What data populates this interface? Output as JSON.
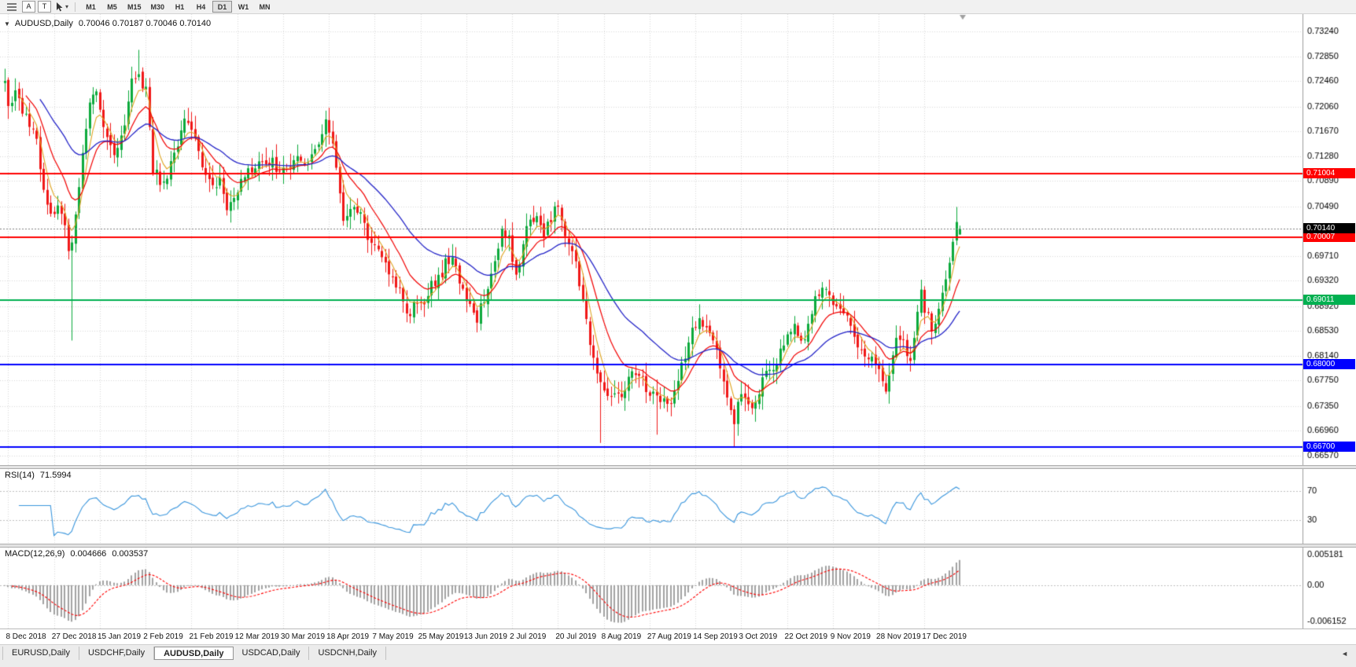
{
  "icons": {
    "window_menu": "▼",
    "cursor_caret": "▾",
    "tab_scroll_left": "◄"
  },
  "toolbar": {
    "buttons": [
      {
        "label": "A"
      },
      {
        "label": "T"
      }
    ],
    "timeframes": [
      "M1",
      "M5",
      "M15",
      "M30",
      "H1",
      "H4",
      "D1",
      "W1",
      "MN"
    ],
    "active_timeframe": "D1"
  },
  "chart": {
    "symbol_title": "AUDUSD,Daily",
    "ohlc_text": "0.70046 0.70187 0.70046 0.70140",
    "current_bar": {
      "o": 0.70046,
      "h": 0.70187,
      "l": 0.70046,
      "c": 0.7014
    },
    "current_price": {
      "value": 0.7014,
      "label": "0.70140",
      "badge_color": "#000000"
    },
    "levels": [
      {
        "value": 0.71004,
        "label": "0.71004",
        "color": "#ff0000"
      },
      {
        "value": 0.70007,
        "label": "0.70007",
        "color": "#ff0000"
      },
      {
        "value": 0.69011,
        "label": "0.69011",
        "color": "#00b050"
      },
      {
        "value": 0.68,
        "label": "0.68000",
        "color": "#0000ff"
      },
      {
        "value": 0.667,
        "label": "0.66700",
        "color": "#0000ff"
      }
    ],
    "colors": {
      "up": "#0caa3c",
      "down": "#f01818",
      "grid": "#d9d9d9",
      "axis_line": "#9e9e9e",
      "bg": "#ffffff",
      "current_line": "#808080"
    }
  },
  "panels": {
    "rsi": {
      "name": "RSI(14)",
      "value": "71.5994",
      "levels": [
        "70",
        "30"
      ],
      "level_values": [
        70,
        30
      ],
      "line_color": "#3a96dd"
    },
    "macd": {
      "name": "MACD(12,26,9)",
      "value1": "0.004666",
      "value2": "0.003537",
      "axis_labels": [
        "0.005181",
        "0.00",
        "-0.006152"
      ],
      "axis_values": [
        0.005181,
        0,
        -0.006152
      ],
      "hist_color": "#a2a2a2",
      "signal_color": "#ff0000"
    }
  },
  "tabs": {
    "items": [
      {
        "label": "EURUSD,Daily",
        "active": false
      },
      {
        "label": "USDCHF,Daily",
        "active": false
      },
      {
        "label": "AUDUSD,Daily",
        "active": true
      },
      {
        "label": "USDCAD,Daily",
        "active": false
      },
      {
        "label": "USDCNH,Daily",
        "active": false
      }
    ]
  },
  "chart_data": {
    "type": "candlestick",
    "symbol": "AUDUSD",
    "timeframe": "Daily",
    "bars": 272,
    "seed": 20200101,
    "price_axis": {
      "min": 0.6657,
      "max": 0.7324,
      "tick_labels": [
        "0.73240",
        "0.72850",
        "0.72460",
        "0.72060",
        "0.71670",
        "0.71280",
        "0.70890",
        "0.70490",
        "0.69710",
        "0.69320",
        "0.68920",
        "0.68530",
        "0.68140",
        "0.67750",
        "0.67350",
        "0.66960",
        "0.66570"
      ]
    },
    "close_keypoints": [
      [
        0,
        0.724
      ],
      [
        1,
        0.7215
      ],
      [
        3,
        0.7228
      ],
      [
        5,
        0.7192
      ],
      [
        7,
        0.7178
      ],
      [
        9,
        0.715
      ],
      [
        10,
        0.7108
      ],
      [
        12,
        0.7048
      ],
      [
        14,
        0.7038
      ],
      [
        16,
        0.7046
      ],
      [
        18,
        0.6985
      ],
      [
        19,
        0.7
      ],
      [
        22,
        0.7132
      ],
      [
        24,
        0.721
      ],
      [
        26,
        0.7222
      ],
      [
        28,
        0.7172
      ],
      [
        31,
        0.7128
      ],
      [
        34,
        0.7178
      ],
      [
        36,
        0.7242
      ],
      [
        38,
        0.7258
      ],
      [
        40,
        0.7228
      ],
      [
        41,
        0.718
      ],
      [
        42,
        0.7108
      ],
      [
        44,
        0.7092
      ],
      [
        46,
        0.7102
      ],
      [
        48,
        0.7125
      ],
      [
        51,
        0.7192
      ],
      [
        53,
        0.7165
      ],
      [
        55,
        0.7128
      ],
      [
        57,
        0.7098
      ],
      [
        59,
        0.7085
      ],
      [
        61,
        0.7092
      ],
      [
        63,
        0.7042
      ],
      [
        65,
        0.7062
      ],
      [
        67,
        0.7088
      ],
      [
        70,
        0.7108
      ],
      [
        73,
        0.7112
      ],
      [
        76,
        0.7128
      ],
      [
        78,
        0.7098
      ],
      [
        80,
        0.7108
      ],
      [
        83,
        0.7122
      ],
      [
        86,
        0.7118
      ],
      [
        88,
        0.7132
      ],
      [
        91,
        0.7178
      ],
      [
        93,
        0.7152
      ],
      [
        96,
        0.7018
      ],
      [
        98,
        0.7035
      ],
      [
        100,
        0.7048
      ],
      [
        102,
        0.702
      ],
      [
        104,
        0.6992
      ],
      [
        106,
        0.6986
      ],
      [
        108,
        0.696
      ],
      [
        110,
        0.6942
      ],
      [
        112,
        0.6912
      ],
      [
        114,
        0.6885
      ],
      [
        115,
        0.6882
      ],
      [
        117,
        0.6895
      ],
      [
        119,
        0.69
      ],
      [
        121,
        0.6925
      ],
      [
        123,
        0.6932
      ],
      [
        125,
        0.6962
      ],
      [
        127,
        0.6966
      ],
      [
        129,
        0.693
      ],
      [
        131,
        0.6896
      ],
      [
        134,
        0.6872
      ],
      [
        137,
        0.692
      ],
      [
        139,
        0.6962
      ],
      [
        141,
        0.702
      ],
      [
        143,
        0.6995
      ],
      [
        145,
        0.6935
      ],
      [
        148,
        0.7015
      ],
      [
        151,
        0.704
      ],
      [
        153,
        0.7
      ],
      [
        155,
        0.703
      ],
      [
        157,
        0.7048
      ],
      [
        159,
        0.7
      ],
      [
        162,
        0.6955
      ],
      [
        164,
        0.69
      ],
      [
        166,
        0.683
      ],
      [
        168,
        0.679
      ],
      [
        169,
        0.677
      ],
      [
        172,
        0.6748
      ],
      [
        175,
        0.6752
      ],
      [
        178,
        0.6785
      ],
      [
        180,
        0.6782
      ],
      [
        183,
        0.6758
      ],
      [
        185,
        0.6742
      ],
      [
        187,
        0.6738
      ],
      [
        189,
        0.6734
      ],
      [
        191,
        0.6772
      ],
      [
        193,
        0.6818
      ],
      [
        195,
        0.6852
      ],
      [
        197,
        0.6868
      ],
      [
        199,
        0.6862
      ],
      [
        201,
        0.6842
      ],
      [
        203,
        0.6792
      ],
      [
        205,
        0.6755
      ],
      [
        207,
        0.6712
      ],
      [
        209,
        0.6758
      ],
      [
        212,
        0.6725
      ],
      [
        215,
        0.6772
      ],
      [
        218,
        0.6798
      ],
      [
        221,
        0.683
      ],
      [
        224,
        0.6855
      ],
      [
        227,
        0.6842
      ],
      [
        230,
        0.6898
      ],
      [
        232,
        0.6922
      ],
      [
        235,
        0.6892
      ],
      [
        238,
        0.689
      ],
      [
        241,
        0.6842
      ],
      [
        244,
        0.6822
      ],
      [
        247,
        0.68
      ],
      [
        249,
        0.6782
      ],
      [
        250,
        0.676
      ],
      [
        252,
        0.6822
      ],
      [
        253,
        0.6846
      ],
      [
        255,
        0.6838
      ],
      [
        256,
        0.682
      ],
      [
        257,
        0.6808
      ],
      [
        258,
        0.685
      ],
      [
        259,
        0.6885
      ],
      [
        260,
        0.6916
      ],
      [
        261,
        0.688
      ],
      [
        262,
        0.689
      ],
      [
        263,
        0.686
      ],
      [
        264,
        0.6856
      ],
      [
        265,
        0.6885
      ],
      [
        266,
        0.691
      ],
      [
        267,
        0.693
      ],
      [
        268,
        0.6955
      ],
      [
        269,
        0.6985
      ],
      [
        270,
        0.7028
      ],
      [
        271,
        0.7014
      ]
    ],
    "overrides": {
      "19": {
        "low": 0.6838
      },
      "38": {
        "high": 0.7295
      },
      "115": {
        "low": 0.6865
      },
      "169": {
        "low": 0.6677
      },
      "185": {
        "low": 0.669
      },
      "197": {
        "high": 0.6895
      },
      "207": {
        "low": 0.667
      },
      "232": {
        "high": 0.693
      },
      "250": {
        "low": 0.6754
      },
      "270": {
        "high": 0.7048
      }
    },
    "date_ticks": [
      {
        "bar": 1,
        "label": "8 Dec 2018"
      },
      {
        "bar": 14,
        "label": "27 Dec 2018"
      },
      {
        "bar": 27,
        "label": "15 Jan 2019"
      },
      {
        "bar": 40,
        "label": "2 Feb 2019"
      },
      {
        "bar": 53,
        "label": "21 Feb 2019"
      },
      {
        "bar": 66,
        "label": "12 Mar 2019"
      },
      {
        "bar": 79,
        "label": "30 Mar 2019"
      },
      {
        "bar": 92,
        "label": "18 Apr 2019"
      },
      {
        "bar": 105,
        "label": "7 May 2019"
      },
      {
        "bar": 118,
        "label": "25 May 2019"
      },
      {
        "bar": 131,
        "label": "13 Jun 2019"
      },
      {
        "bar": 144,
        "label": "2 Jul 2019"
      },
      {
        "bar": 157,
        "label": "20 Jul 2019"
      },
      {
        "bar": 170,
        "label": "8 Aug 2019"
      },
      {
        "bar": 183,
        "label": "27 Aug 2019"
      },
      {
        "bar": 196,
        "label": "14 Sep 2019"
      },
      {
        "bar": 209,
        "label": "3 Oct 2019"
      },
      {
        "bar": 222,
        "label": "22 Oct 2019"
      },
      {
        "bar": 235,
        "label": "9 Nov 2019"
      },
      {
        "bar": 248,
        "label": "28 Nov 2019"
      },
      {
        "bar": 261,
        "label": "17 Dec 2019"
      }
    ],
    "moving_averages": [
      {
        "period": 5,
        "color": "#dfa522"
      },
      {
        "period": 13,
        "color": "#f20000"
      },
      {
        "period": 34,
        "color": "#2424c8"
      }
    ],
    "horizontal_levels": [
      0.71004,
      0.70007,
      0.69011,
      0.68,
      0.667
    ],
    "indicators": {
      "rsi": {
        "period": 14,
        "last": 71.5994
      },
      "macd": {
        "fast": 12,
        "slow": 26,
        "signal": 9,
        "last": [
          0.004666,
          0.003537
        ]
      }
    }
  }
}
